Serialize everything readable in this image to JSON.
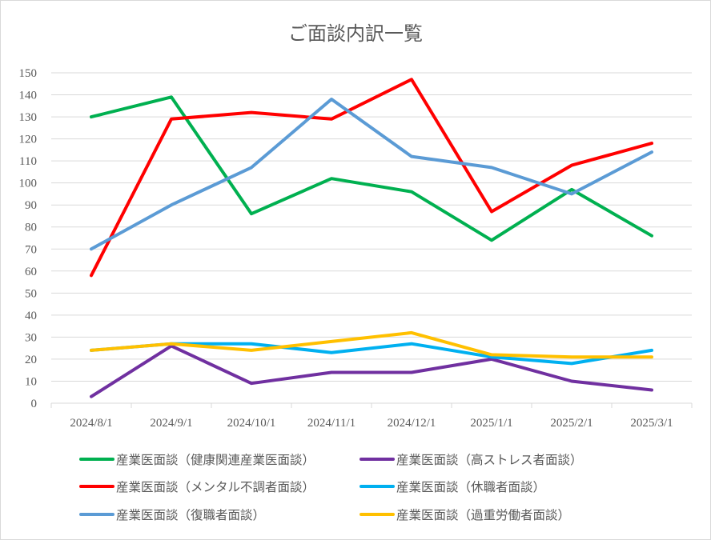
{
  "chart_data": {
    "type": "line",
    "title": "ご面談内訳一覧",
    "xlabel": "",
    "ylabel": "",
    "ylim": [
      0,
      150
    ],
    "y_step": 10,
    "grid": true,
    "legend_position": "bottom",
    "categories": [
      "2024/8/1",
      "2024/9/1",
      "2024/10/1",
      "2024/11/1",
      "2024/12/1",
      "2025/1/1",
      "2025/2/1",
      "2025/3/1"
    ],
    "series": [
      {
        "name": "産業医面談（健康関連産業医面談）",
        "color": "#00b050",
        "values": [
          130,
          139,
          86,
          102,
          96,
          74,
          97,
          76
        ]
      },
      {
        "name": "産業医面談（高ストレス者面談）",
        "color": "#7030a0",
        "values": [
          3,
          26,
          9,
          14,
          14,
          20,
          10,
          6
        ]
      },
      {
        "name": "産業医面談（メンタル不調者面談）",
        "color": "#ff0000",
        "values": [
          58,
          129,
          132,
          129,
          147,
          87,
          108,
          118
        ]
      },
      {
        "name": "産業医面談（休職者面談）",
        "color": "#00b0f0",
        "values": [
          24,
          27,
          27,
          23,
          27,
          21,
          18,
          24
        ]
      },
      {
        "name": "産業医面談（復職者面談）",
        "color": "#5b9bd5",
        "values": [
          70,
          90,
          107,
          138,
          112,
          107,
          95,
          114
        ]
      },
      {
        "name": "産業医面談（過重労働者面談）",
        "color": "#ffc000",
        "values": [
          24,
          27,
          24,
          28,
          32,
          22,
          21,
          21
        ]
      }
    ]
  }
}
